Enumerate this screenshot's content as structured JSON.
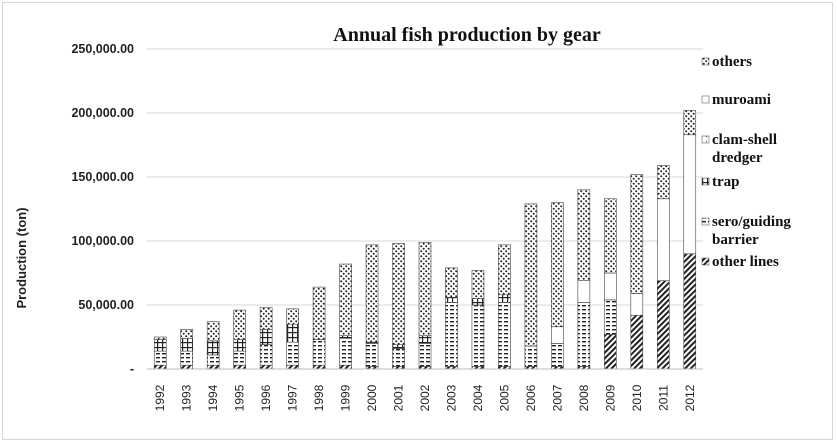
{
  "chart_data": {
    "type": "bar",
    "stacked": true,
    "title": "Annual fish production by gear",
    "xlabel": "",
    "ylabel": "Production (ton)",
    "ylim": [
      0,
      250000
    ],
    "yticks": [
      "-",
      "50,000.00",
      "100,000.00",
      "150,000.00",
      "200,000.00",
      "250,000.00"
    ],
    "grid": "horizontal",
    "legend_position": "right",
    "categories": [
      "1992",
      "1993",
      "1994",
      "1995",
      "1996",
      "1997",
      "1998",
      "1999",
      "2000",
      "2001",
      "2002",
      "2003",
      "2004",
      "2005",
      "2006",
      "2007",
      "2008",
      "2009",
      "2010",
      "2011",
      "2012"
    ],
    "series": [
      {
        "name": "other lines",
        "pattern": "diagonal-hatch",
        "values": [
          3000,
          3000,
          3000,
          3000,
          3000,
          3000,
          3000,
          3000,
          2000,
          2000,
          2000,
          2000,
          2000,
          2000,
          2000,
          2000,
          2000,
          27000,
          42000,
          69000,
          90000
        ]
      },
      {
        "name": "sero/guiding barrier",
        "pattern": "horizontal-dashes",
        "values": [
          11000,
          11000,
          8000,
          11000,
          16000,
          18000,
          20000,
          21000,
          18000,
          14000,
          18000,
          50000,
          48000,
          50000,
          16000,
          18000,
          50000,
          27000,
          0,
          0,
          0
        ]
      },
      {
        "name": "trap",
        "pattern": "plus-grid",
        "values": [
          9000,
          10000,
          11000,
          9000,
          12000,
          14000,
          0,
          2000,
          1000,
          3000,
          6000,
          4000,
          5000,
          6000,
          0,
          0,
          0,
          0,
          0,
          0,
          0
        ]
      },
      {
        "name": "clam-shell dredger",
        "pattern": "light-dots",
        "values": [
          0,
          0,
          0,
          0,
          0,
          0,
          0,
          0,
          0,
          0,
          0,
          0,
          0,
          0,
          0,
          0,
          0,
          0,
          0,
          0,
          0
        ]
      },
      {
        "name": "muroami",
        "pattern": "outlined-white",
        "values": [
          0,
          0,
          0,
          0,
          0,
          0,
          0,
          0,
          0,
          0,
          0,
          0,
          0,
          0,
          0,
          13000,
          17000,
          21000,
          17000,
          64000,
          93000
        ]
      },
      {
        "name": "others",
        "pattern": "dense-dots",
        "values": [
          2000,
          7000,
          15000,
          23000,
          17000,
          12000,
          41000,
          56000,
          76000,
          79000,
          73000,
          23000,
          22000,
          39000,
          111000,
          97000,
          71000,
          58000,
          93000,
          26000,
          19000
        ]
      }
    ]
  }
}
